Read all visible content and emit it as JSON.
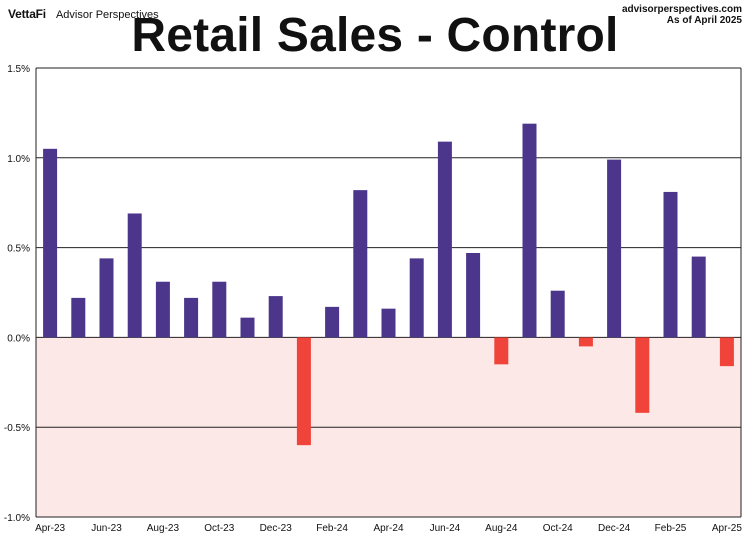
{
  "header": {
    "brand_logo": "VettaFi",
    "brand_name": "Advisor Perspectives",
    "source_site": "advisorperspectives.com",
    "as_of": "As of April 2025"
  },
  "colors": {
    "positive": "#4b368b",
    "negative": "#f0433a",
    "negative_zone": "#fde8e8",
    "grid": "#222222"
  },
  "chart_data": {
    "type": "bar",
    "title": "Retail Sales - Control",
    "xlabel": "",
    "ylabel": "",
    "ylim": [
      -1.0,
      1.5
    ],
    "y_ticks": [
      1.5,
      1.0,
      0.5,
      0.0,
      -0.5,
      -1.0
    ],
    "y_tick_labels": [
      "1.5%",
      "1.0%",
      "0.5%",
      "0.0%",
      "-0.5%",
      "-1.0%"
    ],
    "categories": [
      "Apr-23",
      "May-23",
      "Jun-23",
      "Jul-23",
      "Aug-23",
      "Sep-23",
      "Oct-23",
      "Nov-23",
      "Dec-23",
      "Jan-24",
      "Feb-24",
      "Mar-24",
      "Apr-24",
      "May-24",
      "Jun-24",
      "Jul-24",
      "Aug-24",
      "Sep-24",
      "Oct-24",
      "Nov-24",
      "Dec-24",
      "Jan-25",
      "Feb-25",
      "Mar-25",
      "Apr-25"
    ],
    "x_tick_labels": [
      "Apr-23",
      "",
      "Jun-23",
      "",
      "Aug-23",
      "",
      "Oct-23",
      "",
      "Dec-23",
      "",
      "Feb-24",
      "",
      "Apr-24",
      "",
      "Jun-24",
      "",
      "Aug-24",
      "",
      "Oct-24",
      "",
      "Dec-24",
      "",
      "Feb-25",
      "",
      "Apr-25"
    ],
    "values": [
      1.05,
      0.22,
      0.44,
      0.69,
      0.31,
      0.22,
      0.31,
      0.11,
      0.23,
      -0.6,
      0.17,
      0.82,
      0.16,
      0.44,
      1.09,
      0.47,
      -0.15,
      1.19,
      0.26,
      -0.05,
      0.99,
      -0.42,
      0.81,
      0.45,
      -0.16
    ]
  }
}
